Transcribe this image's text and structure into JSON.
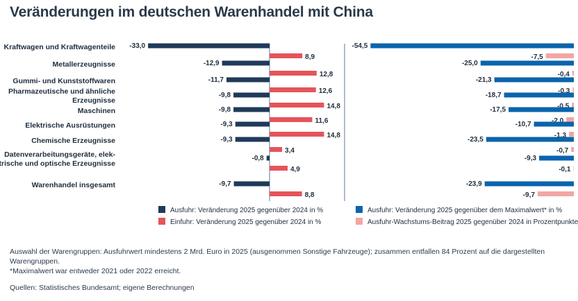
{
  "title": "Veränderungen im deutschen Warenhandel mit China",
  "colors": {
    "ausfuhr_left": "#1f3a5a",
    "einfuhr": "#e5545a",
    "ausfuhr_right": "#0a64ad",
    "beitrag": "#f1a6a4",
    "axis": "#7f97b8"
  },
  "chart_data": [
    {
      "type": "bar",
      "orientation": "horizontal",
      "categories": [
        "Kraftwagen und Kraftwagenteile",
        "Metallerzeugnisse",
        "Gummi- und Kunststoffwaren",
        "Pharmazeutische und ähnliche Erzeugnisse",
        "Maschinen",
        "Elektrische Ausrüstungen",
        "Chemische Erzeugnisse",
        "Datenverarbeitungsgeräte, elektrische und optische Erzeugnisse",
        "Warenhandel insgesamt"
      ],
      "category_lines": [
        [
          "Kraftwagen und Kraftwagenteile"
        ],
        [
          "Metallerzeugnisse"
        ],
        [
          "Gummi- und Kunststoffwaren"
        ],
        [
          "Pharmazeutische und ähnliche",
          "Erzeugnisse"
        ],
        [
          "Maschinen"
        ],
        [
          "Elektrische Ausrüstungen"
        ],
        [
          "Chemische Erzeugnisse"
        ],
        [
          "Datenverarbeitungsgeräte, elek-",
          "trische und optische Erzeugnisse"
        ],
        [
          "Warenhandel insgesamt"
        ]
      ],
      "series": [
        {
          "name": "Ausfuhr: Veränderung 2025 gegenüber 2024 in %",
          "values": [
            -33.0,
            -12.9,
            -11.7,
            -9.8,
            -9.8,
            -9.3,
            -9.3,
            -0.8,
            -9.7
          ],
          "labels": [
            "-33,0",
            "-12,9",
            "-11,7",
            "-9,8",
            "-9,8",
            "-9,3",
            "-9,3",
            "-0,8",
            "-9,7"
          ]
        },
        {
          "name": "Einfuhr: Veränderung 2025 gegenüber 2024 in %",
          "values": [
            8.9,
            12.8,
            12.6,
            14.8,
            11.6,
            14.8,
            3.4,
            4.9,
            8.8
          ],
          "labels": [
            "8,9",
            "12,8",
            "12,6",
            "14,8",
            "11,6",
            "14,8",
            "3,4",
            "4,9",
            "8,8"
          ]
        }
      ]
    },
    {
      "type": "bar",
      "orientation": "horizontal",
      "series": [
        {
          "name": "Ausfuhr: Veränderung 2025 gegenüber dem Maximalwert* in %",
          "values": [
            -54.5,
            -25.0,
            -21.3,
            -18.7,
            -17.5,
            -10.7,
            -23.5,
            -9.3,
            -23.9
          ],
          "labels": [
            "-54,5",
            "-25,0",
            "-21,3",
            "-18,7",
            "-17,5",
            "-10,7",
            "-23,5",
            "-9,3",
            "-23,9"
          ]
        },
        {
          "name": "Ausfuhr-Wachstums-Beitrag 2025 gegenüber 2024 in Prozentpunkten",
          "values": [
            -7.5,
            -0.4,
            -0.3,
            -0.5,
            -2.0,
            -1.3,
            -0.7,
            -0.1,
            -9.7
          ],
          "labels": [
            "-7,5",
            "-0,4",
            "-0,3",
            "-0,5",
            "-2,0",
            "-1,3",
            "-0,7",
            "-0,1",
            "-9,7"
          ]
        }
      ]
    }
  ],
  "notes": {
    "line1": "Auswahl der Warengruppen: Ausfuhrwert mindestens 2 Mrd. Euro in 2025 (ausgenommen Sonstige Fahrzeuge); zusammen entfallen 84 Prozent auf die dargestellten Warengruppen.",
    "line2": "*Maximalwert war entweder 2021 oder 2022 erreicht.",
    "source": "Quellen: Statistisches Bundesamt; eigene Berechnungen"
  }
}
